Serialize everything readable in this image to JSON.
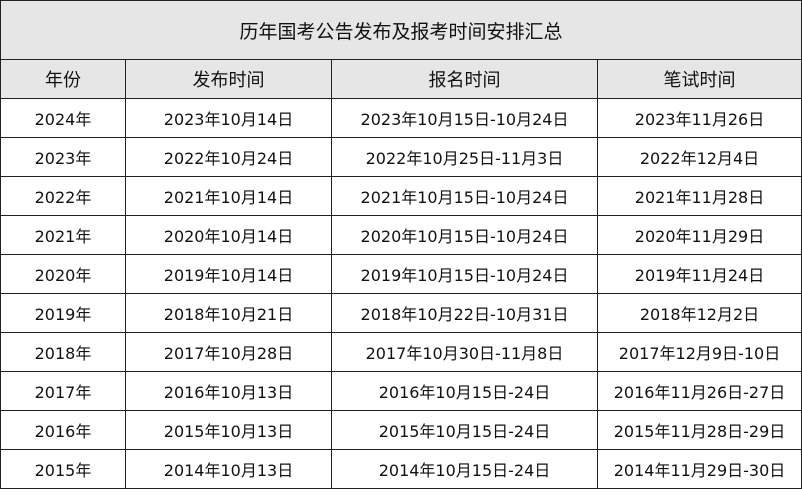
{
  "title": "历年国考公告发布及报考时间安排汇总",
  "columns": [
    "年份",
    "发布时间",
    "报名时间",
    "笔试时间"
  ],
  "rows": [
    [
      "2024年",
      "2023年10月14日",
      "2023年10月15日-10月24日",
      "2023年11月26日"
    ],
    [
      "2023年",
      "2022年10月24日",
      "2022年10月25日-11月3日",
      "2022年12月4日"
    ],
    [
      "2022年",
      "2021年10月14日",
      "2021年10月15日-10月24日",
      "2021年11月28日"
    ],
    [
      "2021年",
      "2020年10月14日",
      "2020年10月15日-10月24日",
      "2020年11月29日"
    ],
    [
      "2020年",
      "2019年10月14日",
      "2019年10月15日-10月24日",
      "2019年11月24日"
    ],
    [
      "2019年",
      "2018年10月21日",
      "2018年10月22日-10月31日",
      "2018年12月2日"
    ],
    [
      "2018年",
      "2017年10月28日",
      "2017年10月30日-11月8日",
      "2017年12月9日-10日"
    ],
    [
      "2017年",
      "2016年10月13日",
      "2016年10月15日-24日",
      "2016年11月26日-27日"
    ],
    [
      "2016年",
      "2015年10月13日",
      "2015年10月15日-24日",
      "2015年11月28日-29日"
    ],
    [
      "2015年",
      "2014年10月13日",
      "2014年10月15日-24日",
      "2014年11月29日-30日"
    ]
  ]
}
